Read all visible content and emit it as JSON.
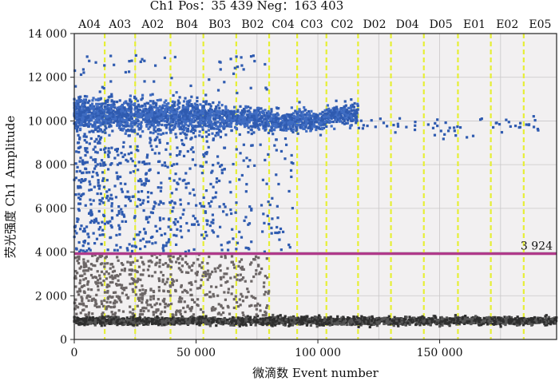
{
  "chart_data": {
    "type": "scatter",
    "title": "Ch1 Pos：35 439 Neg：163 403",
    "xlabel": "微滴数 Event number",
    "ylabel": "荧光强度 Ch1 Amplitude",
    "xlim": [
      0,
      198000
    ],
    "ylim": [
      0,
      14000
    ],
    "x_ticks": [
      0,
      50000,
      100000,
      150000
    ],
    "x_tick_labels": [
      "0",
      "50 000",
      "100 000",
      "150 000"
    ],
    "y_ticks": [
      0,
      2000,
      4000,
      6000,
      8000,
      10000,
      12000,
      14000
    ],
    "y_tick_labels": [
      "0",
      "2 000",
      "4 000",
      "6 000",
      "8 000",
      "10 000",
      "12 000",
      "14 000"
    ],
    "grid": true,
    "threshold": {
      "value": 3924,
      "label": "3 924",
      "color": "#b03a8a"
    },
    "wells": [
      {
        "name": "A04",
        "start": 0
      },
      {
        "name": "A03",
        "start": 12500
      },
      {
        "name": "A02",
        "start": 25000
      },
      {
        "name": "B04",
        "start": 39500
      },
      {
        "name": "B03",
        "start": 53000
      },
      {
        "name": "B02",
        "start": 66500
      },
      {
        "name": "C04",
        "start": 80000
      },
      {
        "name": "C03",
        "start": 91500
      },
      {
        "name": "C02",
        "start": 103500
      },
      {
        "name": "D02",
        "start": 116500
      },
      {
        "name": "D04",
        "start": 130000
      },
      {
        "name": "D05",
        "start": 143500
      },
      {
        "name": "E01",
        "start": 157500
      },
      {
        "name": "E02",
        "start": 171000
      },
      {
        "name": "E05",
        "start": 184500
      }
    ],
    "well_boundaries": [
      12500,
      25000,
      39500,
      53000,
      66500,
      80000,
      91500,
      103500,
      116500,
      130000,
      143500,
      157500,
      171000,
      184500
    ],
    "series": [
      {
        "name": "Positive",
        "color": "#2f5bb0",
        "band": {
          "x_start": 0,
          "x_end": 116500,
          "y_center": 10200,
          "y_spread": 500
        },
        "upper_band_levels": [
          10300,
          10300,
          10250,
          10200,
          10150,
          10100,
          10000,
          10050,
          10300
        ]
      },
      {
        "name": "Negative",
        "color": "#3a3a3a",
        "band": {
          "x_start": 0,
          "x_end": 198000,
          "y_center": 850,
          "y_spread": 150
        }
      }
    ]
  }
}
